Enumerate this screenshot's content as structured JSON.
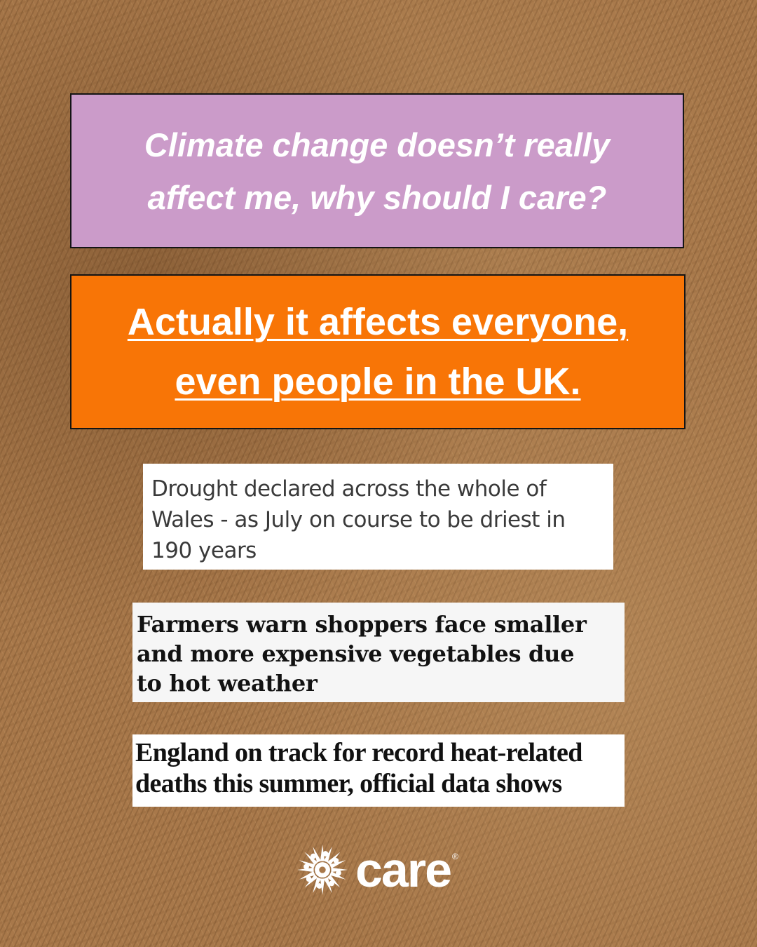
{
  "question": {
    "lines": [
      "Climate change doesn’t really",
      "affect me, why should I care?"
    ],
    "background": "#cb9bc9"
  },
  "answer": {
    "lines": [
      "Actually it affects everyone,",
      "even people in the UK."
    ],
    "background": "#f87506"
  },
  "headlines": [
    {
      "lines": [
        "Drought declared across the whole of",
        "Wales - as July on course to be driest in",
        "190 years"
      ]
    },
    {
      "lines": [
        "Farmers warn shoppers face smaller",
        "and more expensive vegetables due",
        "to hot weather"
      ]
    },
    {
      "lines": [
        "England on track for record heat-related",
        "deaths this summer, official data shows"
      ]
    }
  ],
  "logo": {
    "wordmark": "care",
    "registered": "®",
    "icon": "care-starburst-icon"
  }
}
